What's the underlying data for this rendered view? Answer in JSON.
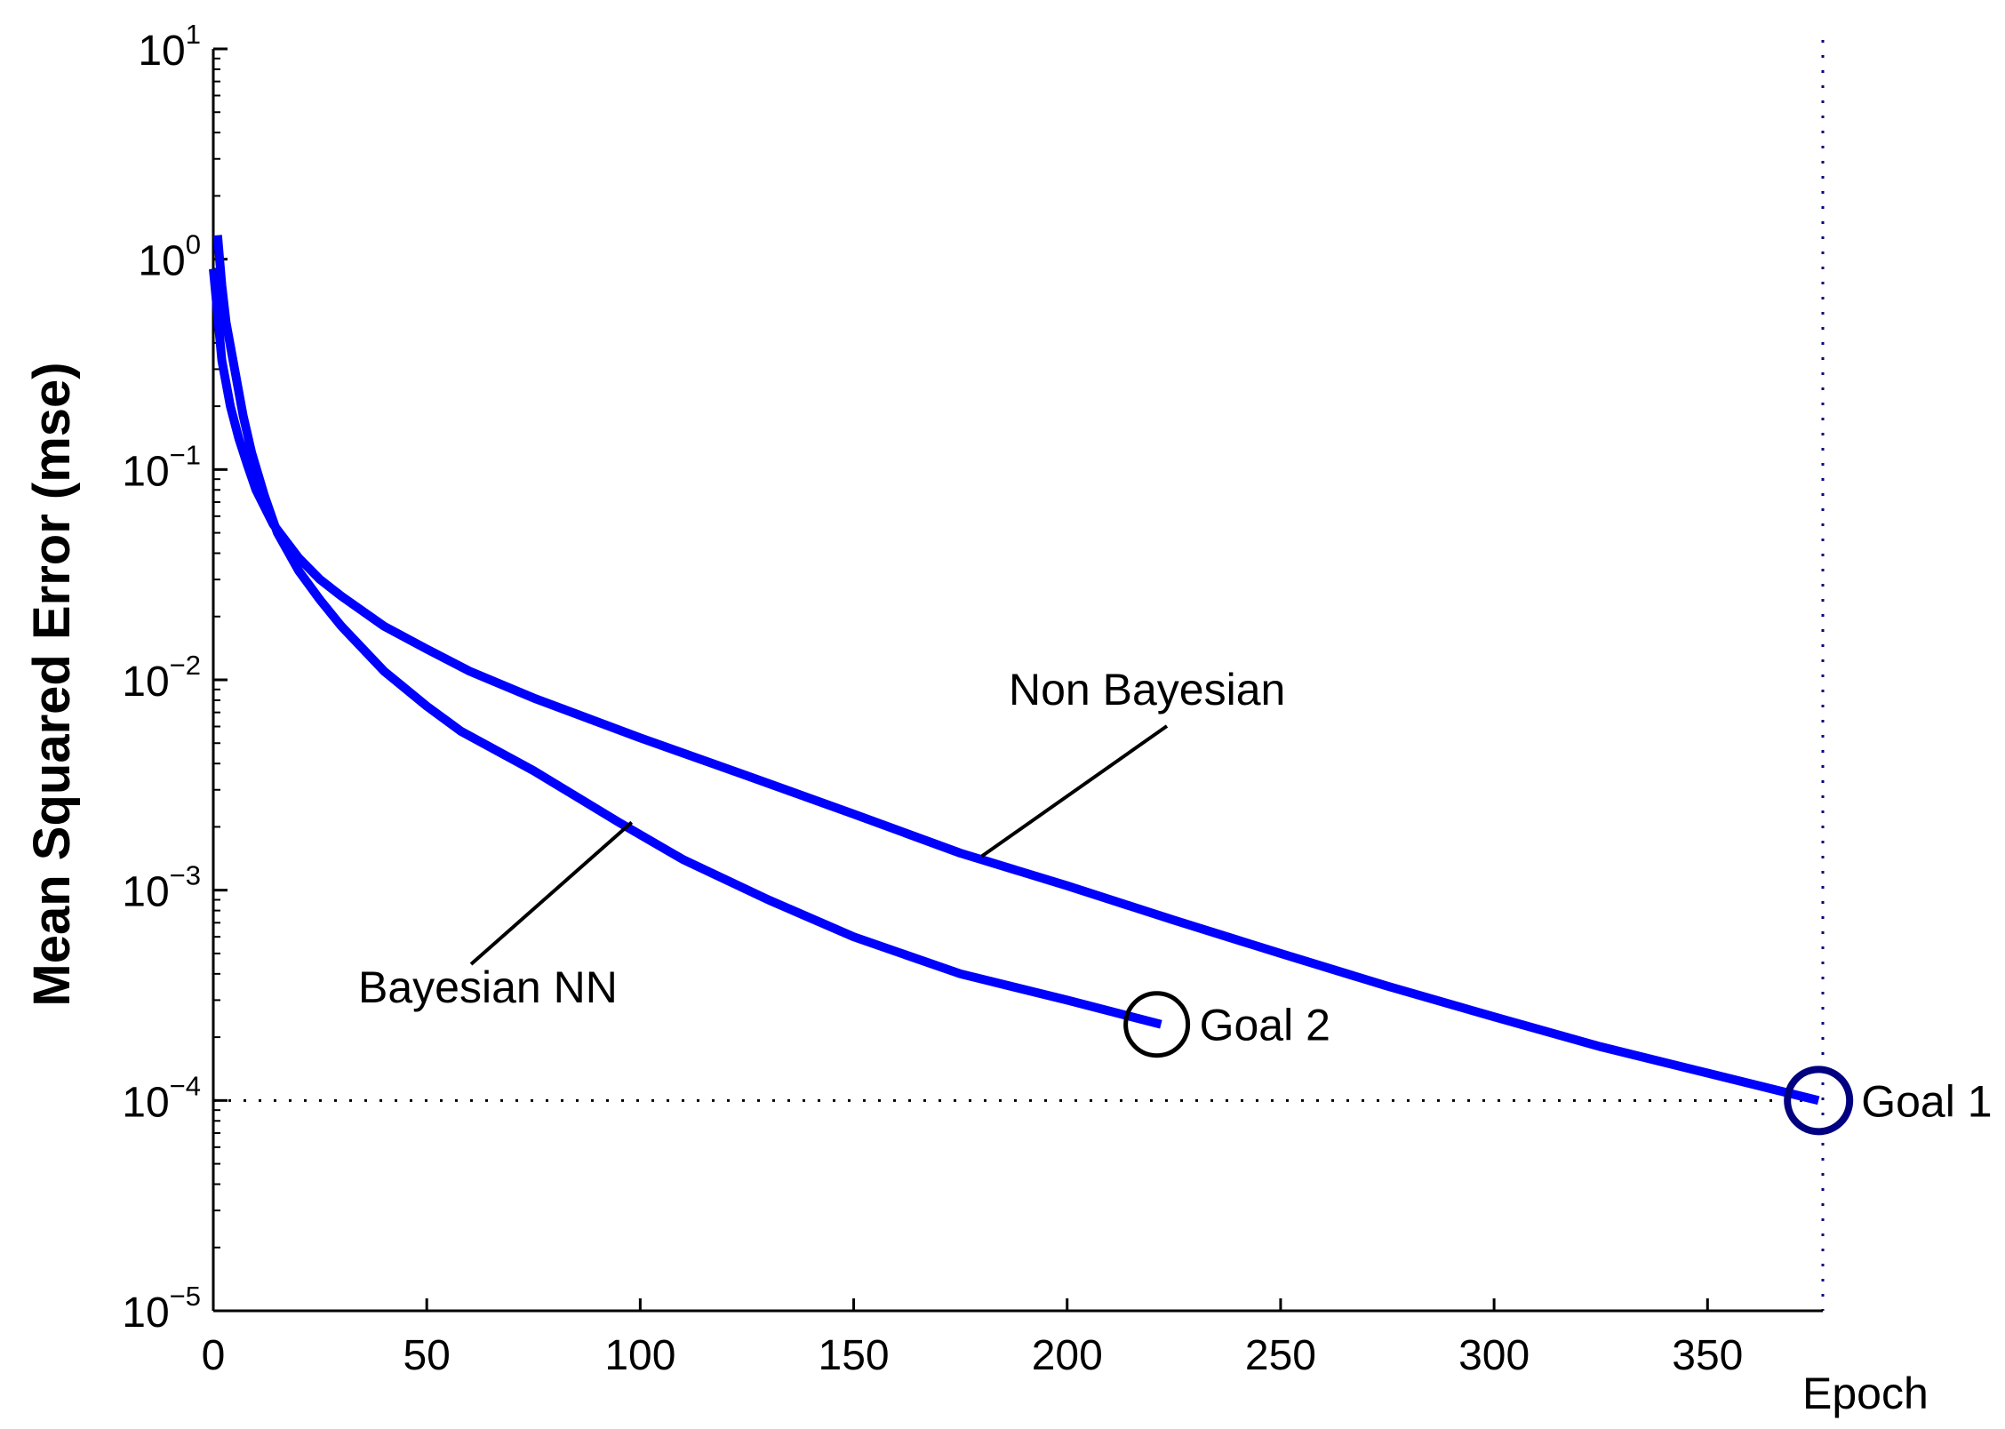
{
  "chart_data": {
    "type": "line",
    "title": "",
    "xlabel": "Epoch",
    "ylabel": "Mean Squared Error  (mse)",
    "xlim": [
      0,
      377
    ],
    "ylim": [
      1e-05,
      10
    ],
    "yscale": "log",
    "grid": false,
    "x_ticks": [
      {
        "value": 0,
        "label": "0"
      },
      {
        "value": 50,
        "label": "50"
      },
      {
        "value": 100,
        "label": "100"
      },
      {
        "value": 150,
        "label": "150"
      },
      {
        "value": 200,
        "label": "200"
      },
      {
        "value": 250,
        "label": "250"
      },
      {
        "value": 300,
        "label": "300"
      },
      {
        "value": 350,
        "label": "350"
      }
    ],
    "y_ticks": [
      {
        "value": 10,
        "base": "10",
        "exp": "1"
      },
      {
        "value": 1,
        "base": "10",
        "exp": "0"
      },
      {
        "value": 0.1,
        "base": "10",
        "exp": "−1"
      },
      {
        "value": 0.01,
        "base": "10",
        "exp": "−2"
      },
      {
        "value": 0.001,
        "base": "10",
        "exp": "−3"
      },
      {
        "value": 0.0001,
        "base": "10",
        "exp": "−4"
      },
      {
        "value": 1e-05,
        "base": "10",
        "exp": "−5"
      }
    ],
    "series": [
      {
        "color": "#0000ff",
        "x": [
          0,
          1,
          2,
          4,
          6,
          8,
          10,
          14,
          20,
          25,
          30,
          40,
          50,
          60,
          75,
          100,
          125,
          150,
          175,
          200,
          225,
          250,
          275,
          300,
          325,
          350,
          376
        ],
        "y": [
          0.9,
          0.55,
          0.33,
          0.2,
          0.14,
          0.105,
          0.08,
          0.055,
          0.038,
          0.03,
          0.025,
          0.018,
          0.014,
          0.011,
          0.0082,
          0.0053,
          0.0035,
          0.0023,
          0.0015,
          0.00105,
          0.00072,
          0.0005,
          0.00035,
          0.00025,
          0.00018,
          0.000135,
          0.0001
        ]
      },
      {
        "color": "#0000ff",
        "x": [
          1,
          2,
          3,
          5,
          7,
          9,
          12,
          15,
          20,
          25,
          30,
          40,
          50,
          58,
          75,
          95,
          110,
          130,
          150,
          175,
          200,
          222
        ],
        "y": [
          1.3,
          0.75,
          0.5,
          0.3,
          0.18,
          0.12,
          0.075,
          0.05,
          0.033,
          0.024,
          0.018,
          0.011,
          0.0075,
          0.0057,
          0.0037,
          0.0021,
          0.0014,
          0.0009,
          0.0006,
          0.0004,
          0.0003,
          0.00023
        ]
      }
    ],
    "annotations": [
      {
        "label": "Non Bayesian",
        "target_series": 0
      },
      {
        "label": "Bayesian NN",
        "target_series": 1
      }
    ],
    "goal_markers": [
      {
        "label": "Goal 1",
        "x": 376,
        "y": 0.0001,
        "color": "#000080"
      },
      {
        "label": "Goal 2",
        "x": 221,
        "y": 0.00023,
        "color": "#000000"
      }
    ],
    "reference_lines": [
      {
        "orientation": "horizontal",
        "value": 0.0001,
        "style": "dotted",
        "color": "#000000"
      },
      {
        "orientation": "vertical",
        "value": 377,
        "style": "dotted",
        "color": "#000080"
      }
    ]
  }
}
